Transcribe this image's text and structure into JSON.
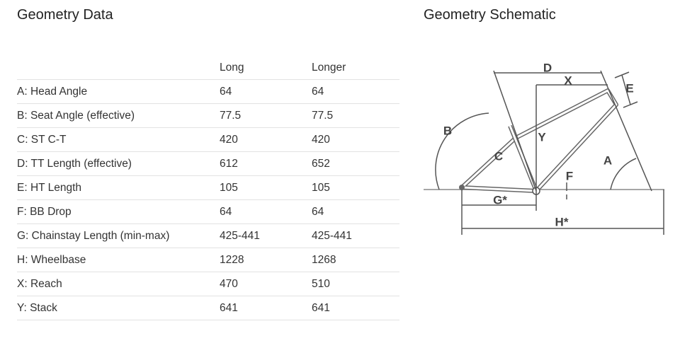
{
  "left": {
    "title": "Geometry Data",
    "table": {
      "columns": [
        "Long",
        "Longer"
      ],
      "rows": [
        [
          "A: Head Angle",
          "64",
          "64"
        ],
        [
          "B: Seat Angle (effective)",
          "77.5",
          "77.5"
        ],
        [
          "C: ST C-T",
          "420",
          "420"
        ],
        [
          "D: TT Length (effective)",
          "612",
          "652"
        ],
        [
          "E: HT Length",
          "105",
          "105"
        ],
        [
          "F: BB Drop",
          "64",
          "64"
        ],
        [
          "G: Chainstay Length (min-max)",
          "425-441",
          "425-441"
        ],
        [
          "H: Wheelbase",
          "1228",
          "1268"
        ],
        [
          "X: Reach",
          "470",
          "510"
        ],
        [
          "Y: Stack",
          "641",
          "641"
        ]
      ]
    }
  },
  "right": {
    "title": "Geometry Schematic",
    "labels": [
      "D",
      "X",
      "E",
      "B",
      "Y",
      "A",
      "C",
      "F",
      "G*",
      "H*"
    ]
  }
}
